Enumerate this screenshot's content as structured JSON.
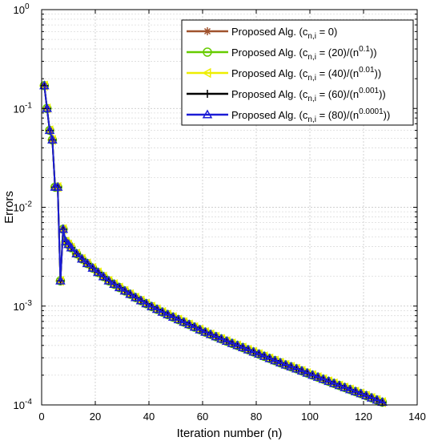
{
  "chart_data": {
    "type": "line",
    "xlabel": "Iteration number (n)",
    "ylabel": "Errors",
    "xlim": [
      0,
      140
    ],
    "ylim": [
      0.0001,
      1
    ],
    "yscale": "log",
    "grid": true,
    "minor_grid": true,
    "legend_position": "top-right",
    "x_ticks": [
      0,
      20,
      40,
      60,
      80,
      100,
      120,
      140
    ],
    "x_tick_labels": [
      "0",
      "20",
      "40",
      "60",
      "80",
      "100",
      "120",
      "140"
    ],
    "y_ticks": [
      1,
      0.1,
      0.01,
      0.001,
      0.0001
    ],
    "y_tick_labels": [
      {
        "base": "10",
        "exp": "0"
      },
      {
        "base": "10",
        "exp": "-1"
      },
      {
        "base": "10",
        "exp": "-2"
      },
      {
        "base": "10",
        "exp": "-3"
      },
      {
        "base": "10",
        "exp": "-4"
      }
    ],
    "shared_curve": {
      "x": [
        1,
        2,
        3,
        4,
        5,
        6,
        7,
        8,
        9,
        10,
        12,
        15,
        20,
        25,
        30,
        35,
        40,
        45,
        50,
        55,
        60,
        65,
        70,
        75,
        80,
        85,
        90,
        95,
        100,
        105,
        110,
        115,
        120,
        125,
        128
      ],
      "y": [
        0.17,
        0.1,
        0.06,
        0.048,
        0.016,
        0.016,
        0.0018,
        0.006,
        0.0045,
        0.0042,
        0.0036,
        0.003,
        0.0023,
        0.0018,
        0.00148,
        0.00122,
        0.00102,
        0.00087,
        0.00075,
        0.00065,
        0.00056,
        0.00049,
        0.00043,
        0.00038,
        0.000335,
        0.000295,
        0.00026,
        0.000232,
        0.000205,
        0.000182,
        0.000161,
        0.000143,
        0.000127,
        0.000112,
        0.000104
      ]
    },
    "series": [
      {
        "legend": {
          "prefix": "Proposed Alg. (c",
          "sub": "n,i",
          "mid": " = 0)",
          "sup": "",
          "suffix": ""
        },
        "color": "#a0522d",
        "marker": "star",
        "line_width": 2
      },
      {
        "legend": {
          "prefix": "Proposed  Alg. (c",
          "sub": "n,i",
          "mid": " = (20)/(n",
          "sup": "0.1",
          "suffix": "))"
        },
        "color": "#66cc00",
        "marker": "circle",
        "line_width": 2
      },
      {
        "legend": {
          "prefix": "Proposed  Alg. (c",
          "sub": "n,i",
          "mid": " = (40)/(n",
          "sup": "0.01",
          "suffix": "))"
        },
        "color": "#eeee00",
        "marker": "triangle-left",
        "line_width": 2
      },
      {
        "legend": {
          "prefix": "Proposed  Alg. (c",
          "sub": "n,i",
          "mid": " = (60)/(n",
          "sup": "0.001",
          "suffix": "))"
        },
        "color": "#000000",
        "marker": "plus",
        "line_width": 2
      },
      {
        "legend": {
          "prefix": "Proposed  Alg. (c",
          "sub": "n,i",
          "mid": " = (80)/(n",
          "sup": "0.0001",
          "suffix": "))"
        },
        "color": "#1c1cd6",
        "marker": "triangle-up",
        "line_width": 2
      }
    ]
  }
}
